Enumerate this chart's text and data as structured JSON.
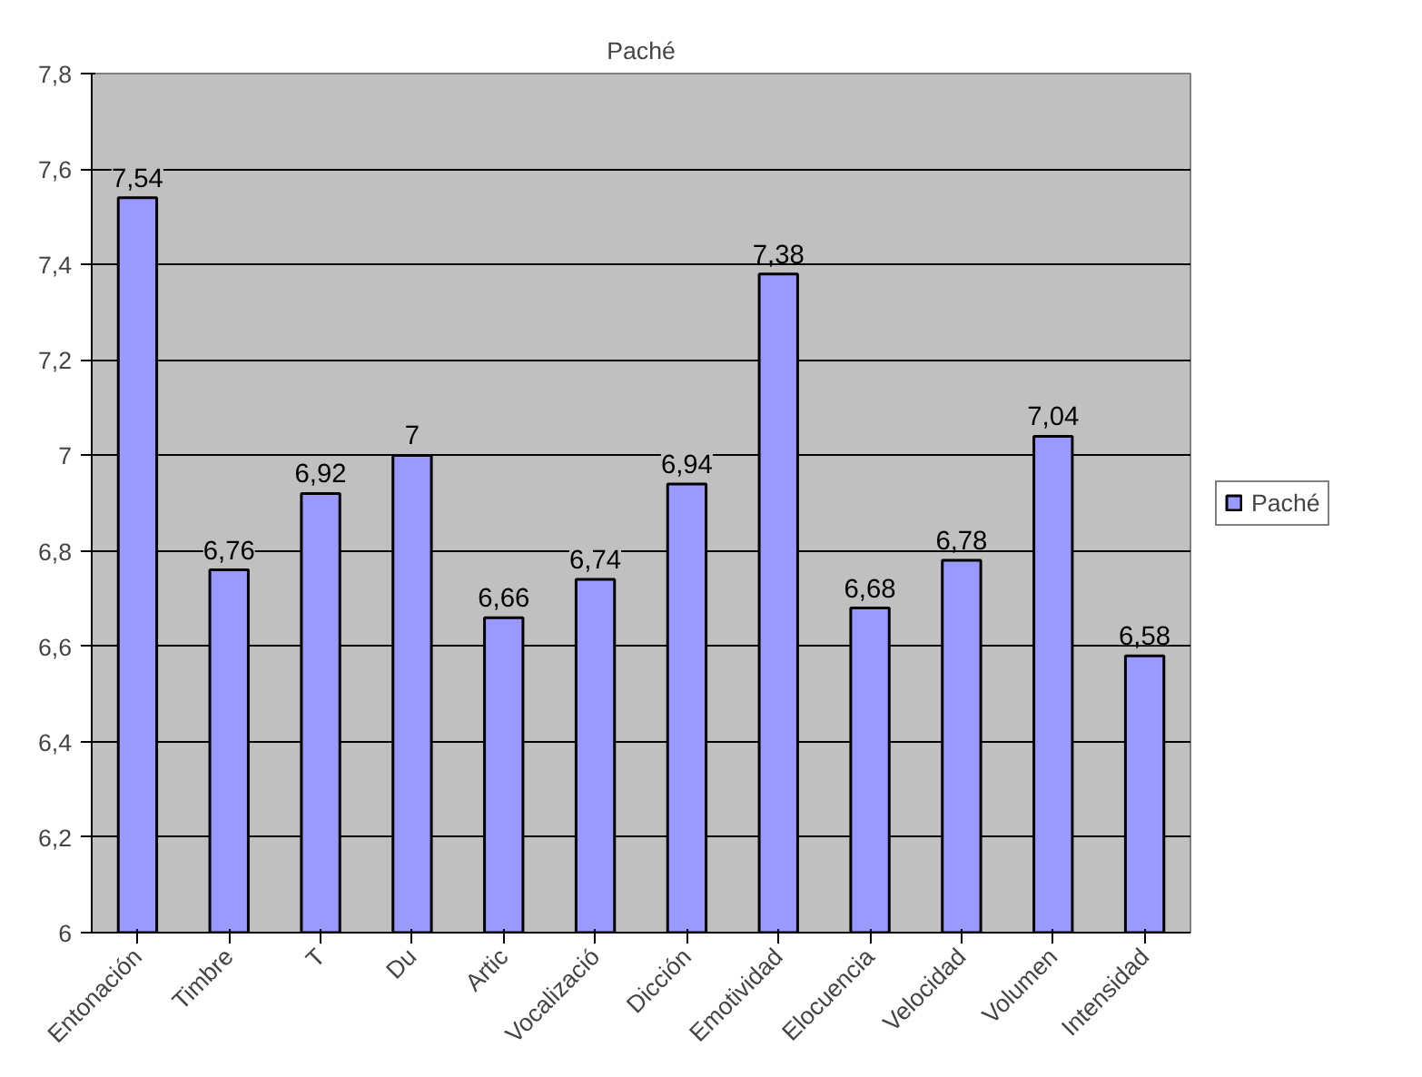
{
  "chart_data": {
    "type": "bar",
    "title": "Paché",
    "categories": [
      "Entonación",
      "Timbre",
      "T",
      "Du",
      "Artic",
      "Vocalizació",
      "Dicción",
      "Emotividad",
      "Elocuencia",
      "Velocidad",
      "Volumen",
      "Intensidad"
    ],
    "series": [
      {
        "name": "Paché",
        "color": "#9999ff",
        "values": [
          7.54,
          6.76,
          6.92,
          7,
          6.66,
          6.74,
          6.94,
          7.38,
          6.68,
          6.78,
          7.04,
          6.58
        ],
        "value_labels": [
          "7,54",
          "6,76",
          "6,92",
          "7",
          "6,66",
          "6,74",
          "6,94",
          "7,38",
          "6,68",
          "6,78",
          "7,04",
          "6,58"
        ]
      }
    ],
    "ylim": [
      6,
      7.8
    ],
    "yticks": [
      6,
      {
        "value": 6.2,
        "label": "6,2"
      },
      {
        "value": 6.4,
        "label": "6,4"
      },
      {
        "value": 6.6,
        "label": "6,6"
      },
      {
        "value": 6.8,
        "label": "6,8"
      },
      7,
      {
        "value": 7.2,
        "label": "7,2"
      },
      {
        "value": 7.4,
        "label": "7,4"
      },
      {
        "value": 7.6,
        "label": "7,6"
      },
      {
        "value": 7.8,
        "label": "7,8"
      }
    ],
    "grid": "y",
    "legend": "right"
  }
}
